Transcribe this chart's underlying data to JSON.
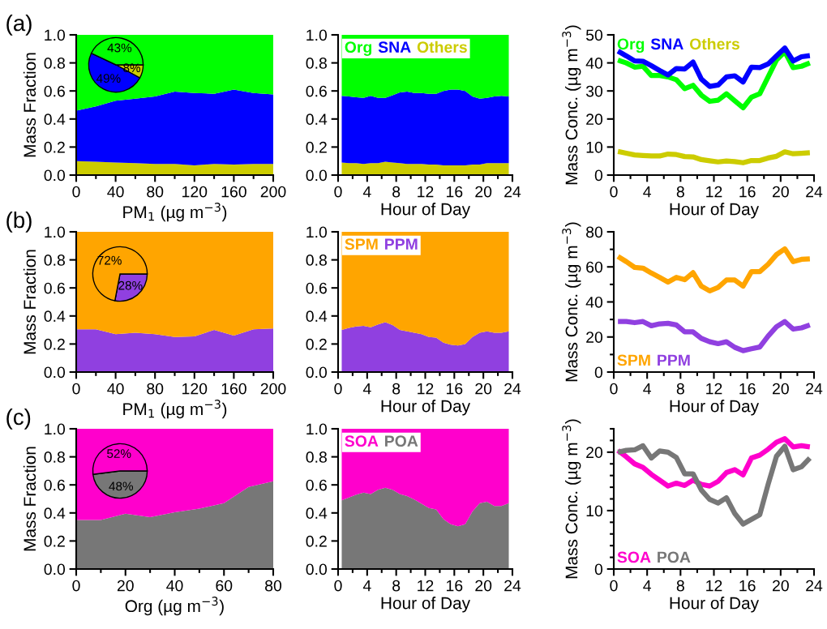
{
  "chart_data": [
    {
      "type": "area",
      "stacked": true,
      "annotations": [
        "(a)"
      ],
      "xlabel": "PM$_{1}$ (µg m$^{−3}$)",
      "ylabel": "Mass Fraction",
      "x": [
        0,
        20,
        40,
        60,
        80,
        100,
        120,
        140,
        160,
        180,
        200
      ],
      "xlim": [
        0,
        200
      ],
      "ylim": [
        0,
        1
      ],
      "xticks": [
        0,
        {
          "value": 20,
          "label": null
        },
        40,
        {
          "value": 60,
          "label": null
        },
        80,
        {
          "value": 100,
          "label": null
        },
        120,
        {
          "value": 140,
          "label": null
        },
        160,
        {
          "value": 180,
          "label": null
        },
        200
      ],
      "yticks": [
        {
          "value": 0,
          "label": "0.0"
        },
        {
          "value": 0.2,
          "label": "0.2"
        },
        {
          "value": 0.4,
          "label": "0.4"
        },
        {
          "value": 0.6,
          "label": "0.6"
        },
        {
          "value": 0.8,
          "label": "0.8"
        },
        {
          "value": 1,
          "label": "1.0"
        }
      ],
      "series": [
        {
          "color": "#cccc00",
          "values": [
            0.1,
            0.095,
            0.09,
            0.085,
            0.08,
            0.08,
            0.07,
            0.08,
            0.075,
            0.08,
            0.08
          ]
        },
        {
          "color": "#0000ff",
          "values": [
            0.36,
            0.395,
            0.44,
            0.46,
            0.48,
            0.515,
            0.515,
            0.5,
            0.535,
            0.505,
            0.495
          ]
        },
        {
          "color": "#00ff00",
          "values": [
            0.54,
            0.51,
            0.47,
            0.455,
            0.44,
            0.405,
            0.415,
            0.42,
            0.39,
            0.415,
            0.425
          ]
        }
      ]
    },
    {
      "type": "pie",
      "categories": [
        null,
        null,
        null
      ],
      "values": [
        8,
        49,
        43
      ],
      "colors": [
        "#cccc00",
        "#0000ff",
        "#00ff00"
      ],
      "value_labels": [
        "8%",
        "49%",
        "43%"
      ]
    },
    {
      "type": "area",
      "stacked": true,
      "xlabel": "Hour of Day",
      "legend": "top left",
      "x": [
        0.5,
        1.5,
        2.5,
        3.5,
        4.5,
        5.5,
        6.5,
        7.5,
        8.5,
        9.5,
        10.5,
        11.5,
        12.5,
        13.5,
        14.5,
        15.5,
        16.5,
        17.5,
        18.5,
        19.5,
        20.5,
        21.5,
        22.5,
        23.5
      ],
      "xlim": [
        0,
        24
      ],
      "ylim": [
        0,
        1
      ],
      "xticks": [
        0,
        {
          "value": 2,
          "label": null
        },
        4,
        {
          "value": 6,
          "label": null
        },
        8,
        {
          "value": 10,
          "label": null
        },
        12,
        {
          "value": 14,
          "label": null
        },
        16,
        {
          "value": 18,
          "label": null
        },
        20,
        {
          "value": 22,
          "label": null
        },
        24
      ],
      "yticks": [
        {
          "value": 0,
          "label": "0.0"
        },
        {
          "value": 0.2,
          "label": "0.2"
        },
        {
          "value": 0.4,
          "label": "0.4"
        },
        {
          "value": 0.6,
          "label": "0.6"
        },
        {
          "value": 0.8,
          "label": "0.8"
        },
        {
          "value": 1,
          "label": "1.0"
        }
      ],
      "series": [
        {
          "name": "Others",
          "color": "#cccc00",
          "values": [
            0.09,
            0.085,
            0.085,
            0.08,
            0.085,
            0.085,
            0.095,
            0.09,
            0.085,
            0.08,
            0.08,
            0.08,
            0.075,
            0.075,
            0.07,
            0.07,
            0.07,
            0.07,
            0.075,
            0.075,
            0.085,
            0.085,
            0.085,
            0.085
          ]
        },
        {
          "name": "SNA",
          "color": "#0000ff",
          "values": [
            0.475,
            0.475,
            0.47,
            0.47,
            0.48,
            0.465,
            0.455,
            0.48,
            0.505,
            0.515,
            0.505,
            0.505,
            0.505,
            0.505,
            0.53,
            0.54,
            0.54,
            0.53,
            0.485,
            0.47,
            0.465,
            0.475,
            0.48,
            0.475
          ]
        },
        {
          "name": "Org",
          "color": "#00ff00",
          "values": [
            0.435,
            0.44,
            0.445,
            0.45,
            0.435,
            0.45,
            0.45,
            0.43,
            0.41,
            0.405,
            0.415,
            0.415,
            0.42,
            0.42,
            0.4,
            0.39,
            0.39,
            0.4,
            0.44,
            0.455,
            0.45,
            0.44,
            0.435,
            0.44
          ]
        }
      ]
    },
    {
      "type": "line",
      "xlabel": "Hour of Day",
      "ylabel": "Mass Conc. (µg m$^{−3}$)",
      "legend": "top left",
      "x": [
        0.5,
        1.5,
        2.5,
        3.5,
        4.5,
        5.5,
        6.5,
        7.5,
        8.5,
        9.5,
        10.5,
        11.5,
        12.5,
        13.5,
        14.5,
        15.5,
        16.5,
        17.5,
        18.5,
        19.5,
        20.5,
        21.5,
        22.5,
        23.5
      ],
      "xlim": [
        0,
        24
      ],
      "ylim": [
        0,
        50
      ],
      "xticks": [
        0,
        {
          "value": 2,
          "label": null
        },
        4,
        {
          "value": 6,
          "label": null
        },
        8,
        {
          "value": 10,
          "label": null
        },
        12,
        {
          "value": 14,
          "label": null
        },
        16,
        {
          "value": 18,
          "label": null
        },
        20,
        {
          "value": 22,
          "label": null
        },
        24
      ],
      "yticks": [
        0,
        10,
        20,
        30,
        40,
        50
      ],
      "series": [
        {
          "name": "Org",
          "color": "#00ff00",
          "values": [
            41,
            40,
            38.5,
            38.8,
            35.5,
            35.5,
            35,
            34,
            30.8,
            32,
            28.5,
            26.3,
            26.7,
            29,
            26.5,
            24,
            27.8,
            29,
            35,
            41,
            44,
            38.3,
            38.8,
            40
          ]
        },
        {
          "name": "SNA",
          "color": "#0000ff",
          "values": [
            44.2,
            42.5,
            40.7,
            40.6,
            39,
            37.3,
            35.7,
            38,
            37.8,
            40.3,
            34.2,
            31.6,
            32.1,
            35,
            35.4,
            33.2,
            38.5,
            38.3,
            39.6,
            42.5,
            45.3,
            40.7,
            42.2,
            42.6
          ]
        },
        {
          "name": "Others",
          "color": "#cccc00",
          "values": [
            8.4,
            7.8,
            7.2,
            7.0,
            6.8,
            6.8,
            7.5,
            7.3,
            6.6,
            6.5,
            5.5,
            5.1,
            4.7,
            5.0,
            4.8,
            4.4,
            5.2,
            5.2,
            6.1,
            6.7,
            8.3,
            7.6,
            7.8,
            8.0
          ]
        }
      ]
    },
    {
      "type": "area",
      "stacked": true,
      "annotations": [
        "(b)"
      ],
      "xlabel": "PM$_{1}$ (µg m$^{−3}$)",
      "ylabel": "Mass Fraction",
      "x": [
        0,
        20,
        40,
        60,
        80,
        100,
        120,
        140,
        160,
        180,
        200
      ],
      "xlim": [
        0,
        200
      ],
      "ylim": [
        0,
        1
      ],
      "xticks": [
        0,
        {
          "value": 20,
          "label": null
        },
        40,
        {
          "value": 60,
          "label": null
        },
        80,
        {
          "value": 100,
          "label": null
        },
        120,
        {
          "value": 140,
          "label": null
        },
        160,
        {
          "value": 180,
          "label": null
        },
        200
      ],
      "yticks": [
        {
          "value": 0,
          "label": "0.0"
        },
        {
          "value": 0.2,
          "label": "0.2"
        },
        {
          "value": 0.4,
          "label": "0.4"
        },
        {
          "value": 0.6,
          "label": "0.6"
        },
        {
          "value": 0.8,
          "label": "0.8"
        },
        {
          "value": 1,
          "label": "1.0"
        }
      ],
      "series": [
        {
          "color": "#9040e0",
          "values": [
            0.305,
            0.305,
            0.27,
            0.28,
            0.27,
            0.25,
            0.255,
            0.3,
            0.26,
            0.305,
            0.31
          ]
        },
        {
          "color": "#ffa500",
          "values": [
            0.695,
            0.695,
            0.73,
            0.72,
            0.73,
            0.75,
            0.745,
            0.7,
            0.74,
            0.695,
            0.69
          ]
        }
      ]
    },
    {
      "type": "pie",
      "categories": [
        null,
        null
      ],
      "values": [
        28,
        72
      ],
      "colors": [
        "#9040e0",
        "#ffa500"
      ],
      "value_labels": [
        "28%",
        "72%"
      ]
    },
    {
      "type": "area",
      "stacked": true,
      "xlabel": "Hour of Day",
      "legend": "top left",
      "x": [
        0.5,
        1.5,
        2.5,
        3.5,
        4.5,
        5.5,
        6.5,
        7.5,
        8.5,
        9.5,
        10.5,
        11.5,
        12.5,
        13.5,
        14.5,
        15.5,
        16.5,
        17.5,
        18.5,
        19.5,
        20.5,
        21.5,
        22.5,
        23.5
      ],
      "xlim": [
        0,
        24
      ],
      "ylim": [
        0,
        1
      ],
      "xticks": [
        0,
        {
          "value": 2,
          "label": null
        },
        4,
        {
          "value": 6,
          "label": null
        },
        8,
        {
          "value": 10,
          "label": null
        },
        12,
        {
          "value": 14,
          "label": null
        },
        16,
        {
          "value": 18,
          "label": null
        },
        20,
        {
          "value": 22,
          "label": null
        },
        24
      ],
      "yticks": [
        {
          "value": 0,
          "label": "0.0"
        },
        {
          "value": 0.2,
          "label": "0.2"
        },
        {
          "value": 0.4,
          "label": "0.4"
        },
        {
          "value": 0.6,
          "label": "0.6"
        },
        {
          "value": 0.8,
          "label": "0.8"
        },
        {
          "value": 1,
          "label": "1.0"
        }
      ],
      "series": [
        {
          "name": "PPM",
          "color": "#9040e0",
          "values": [
            0.3,
            0.315,
            0.325,
            0.33,
            0.32,
            0.34,
            0.355,
            0.335,
            0.3,
            0.29,
            0.28,
            0.27,
            0.25,
            0.245,
            0.21,
            0.195,
            0.19,
            0.2,
            0.25,
            0.28,
            0.29,
            0.28,
            0.28,
            0.29
          ]
        },
        {
          "name": "SPM",
          "color": "#ffa500",
          "values": [
            0.7,
            0.685,
            0.675,
            0.67,
            0.68,
            0.66,
            0.645,
            0.665,
            0.7,
            0.71,
            0.72,
            0.73,
            0.75,
            0.755,
            0.79,
            0.805,
            0.81,
            0.8,
            0.75,
            0.72,
            0.71,
            0.72,
            0.72,
            0.71
          ]
        }
      ]
    },
    {
      "type": "line",
      "xlabel": "Hour of Day",
      "ylabel": "Mass Conc. (µg m$^{−3}$)",
      "legend": "bottom left",
      "x": [
        0.5,
        1.5,
        2.5,
        3.5,
        4.5,
        5.5,
        6.5,
        7.5,
        8.5,
        9.5,
        10.5,
        11.5,
        12.5,
        13.5,
        14.5,
        15.5,
        16.5,
        17.5,
        18.5,
        19.5,
        20.5,
        21.5,
        22.5,
        23.5
      ],
      "xlim": [
        0,
        24
      ],
      "ylim": [
        0,
        80
      ],
      "xticks": [
        0,
        {
          "value": 2,
          "label": null
        },
        4,
        {
          "value": 6,
          "label": null
        },
        8,
        {
          "value": 10,
          "label": null
        },
        12,
        {
          "value": 14,
          "label": null
        },
        16,
        {
          "value": 18,
          "label": null
        },
        20,
        {
          "value": 22,
          "label": null
        },
        24
      ],
      "yticks": [
        0,
        {
          "value": 10,
          "label": null
        },
        20,
        {
          "value": 30,
          "label": null
        },
        40,
        {
          "value": 50,
          "label": null
        },
        60,
        {
          "value": 70,
          "label": null
        },
        80
      ],
      "series": [
        {
          "name": "SPM",
          "color": "#ffa500",
          "values": [
            66,
            63,
            59.7,
            59.3,
            56.5,
            54,
            51.3,
            54,
            52.7,
            56.7,
            49,
            46.3,
            48.3,
            52.5,
            52.5,
            49,
            57.3,
            57.3,
            61.5,
            67,
            70.3,
            63,
            64.3,
            64.6
          ]
        },
        {
          "name": "PPM",
          "color": "#9040e0",
          "values": [
            28.8,
            28.8,
            28.2,
            28.8,
            26.4,
            27.5,
            27.8,
            26.9,
            22.9,
            22.9,
            19.2,
            17.3,
            16.2,
            17.3,
            14.1,
            12.2,
            13.3,
            14.3,
            20.5,
            25.8,
            28.8,
            24.5,
            25.2,
            26.9
          ]
        }
      ]
    },
    {
      "type": "area",
      "stacked": true,
      "annotations": [
        "(c)"
      ],
      "xlabel": "Org (µg m$^{−3}$)",
      "ylabel": "Mass Fraction",
      "x": [
        0,
        10,
        20,
        30,
        40,
        50,
        60,
        70,
        80
      ],
      "xlim": [
        0,
        80
      ],
      "ylim": [
        0,
        1
      ],
      "xticks": [
        0,
        {
          "value": 10,
          "label": null
        },
        20,
        {
          "value": 30,
          "label": null
        },
        40,
        {
          "value": 50,
          "label": null
        },
        60,
        {
          "value": 70,
          "label": null
        },
        80
      ],
      "yticks": [
        {
          "value": 0,
          "label": "0.0"
        },
        {
          "value": 0.2,
          "label": "0.2"
        },
        {
          "value": 0.4,
          "label": "0.4"
        },
        {
          "value": 0.6,
          "label": "0.6"
        },
        {
          "value": 0.8,
          "label": "0.8"
        },
        {
          "value": 1,
          "label": "1.0"
        }
      ],
      "series": [
        {
          "color": "#777777",
          "values": [
            0.35,
            0.35,
            0.395,
            0.37,
            0.405,
            0.43,
            0.47,
            0.585,
            0.625
          ]
        },
        {
          "color": "#ff00cc",
          "values": [
            0.65,
            0.65,
            0.605,
            0.63,
            0.595,
            0.57,
            0.53,
            0.415,
            0.375
          ]
        }
      ]
    },
    {
      "type": "pie",
      "categories": [
        null,
        null
      ],
      "values": [
        48,
        52
      ],
      "colors": [
        "#777777",
        "#ff00cc"
      ],
      "value_labels": [
        "48%",
        "52%"
      ]
    },
    {
      "type": "area",
      "stacked": true,
      "xlabel": "Hour of Day",
      "legend": "top left",
      "x": [
        0.5,
        1.5,
        2.5,
        3.5,
        4.5,
        5.5,
        6.5,
        7.5,
        8.5,
        9.5,
        10.5,
        11.5,
        12.5,
        13.5,
        14.5,
        15.5,
        16.5,
        17.5,
        18.5,
        19.5,
        20.5,
        21.5,
        22.5,
        23.5
      ],
      "xlim": [
        0,
        24
      ],
      "ylim": [
        0,
        1
      ],
      "xticks": [
        0,
        {
          "value": 2,
          "label": null
        },
        4,
        {
          "value": 6,
          "label": null
        },
        8,
        {
          "value": 10,
          "label": null
        },
        12,
        {
          "value": 14,
          "label": null
        },
        16,
        {
          "value": 18,
          "label": null
        },
        20,
        {
          "value": 22,
          "label": null
        },
        24
      ],
      "yticks": [
        {
          "value": 0,
          "label": "0.0"
        },
        {
          "value": 0.2,
          "label": "0.2"
        },
        {
          "value": 0.4,
          "label": "0.4"
        },
        {
          "value": 0.6,
          "label": "0.6"
        },
        {
          "value": 0.8,
          "label": "0.8"
        },
        {
          "value": 1,
          "label": "1.0"
        }
      ],
      "series": [
        {
          "name": "POA",
          "color": "#777777",
          "values": [
            0.49,
            0.51,
            0.53,
            0.545,
            0.535,
            0.565,
            0.58,
            0.565,
            0.535,
            0.52,
            0.495,
            0.465,
            0.435,
            0.425,
            0.355,
            0.32,
            0.305,
            0.32,
            0.41,
            0.47,
            0.48,
            0.45,
            0.45,
            0.47
          ]
        },
        {
          "name": "SOA",
          "color": "#ff00cc",
          "values": [
            0.51,
            0.49,
            0.47,
            0.455,
            0.465,
            0.435,
            0.42,
            0.435,
            0.465,
            0.48,
            0.505,
            0.535,
            0.565,
            0.575,
            0.645,
            0.68,
            0.695,
            0.68,
            0.59,
            0.53,
            0.52,
            0.55,
            0.55,
            0.53
          ]
        }
      ]
    },
    {
      "type": "line",
      "xlabel": "Hour of Day",
      "ylabel": "Mass Conc. (µg m$^{−3}$)",
      "legend": "bottom left",
      "x": [
        0.5,
        1.5,
        2.5,
        3.5,
        4.5,
        5.5,
        6.5,
        7.5,
        8.5,
        9.5,
        10.5,
        11.5,
        12.5,
        13.5,
        14.5,
        15.5,
        16.5,
        17.5,
        18.5,
        19.5,
        20.5,
        21.5,
        22.5,
        23.5
      ],
      "xlim": [
        0,
        24
      ],
      "ylim": [
        0,
        24
      ],
      "xticks": [
        0,
        {
          "value": 2,
          "label": null
        },
        4,
        {
          "value": 6,
          "label": null
        },
        8,
        {
          "value": 10,
          "label": null
        },
        12,
        {
          "value": 14,
          "label": null
        },
        16,
        {
          "value": 18,
          "label": null
        },
        20,
        {
          "value": 22,
          "label": null
        },
        24
      ],
      "yticks": [
        0,
        {
          "value": 2,
          "label": null
        },
        {
          "value": 4,
          "label": null
        },
        {
          "value": 6,
          "label": null
        },
        {
          "value": 8,
          "label": null
        },
        10,
        {
          "value": 12,
          "label": null
        },
        {
          "value": 14,
          "label": null
        },
        {
          "value": 16,
          "label": null
        },
        {
          "value": 18,
          "label": null
        },
        20,
        {
          "value": 22,
          "label": null
        },
        {
          "value": 24,
          "label": null
        }
      ],
      "series": [
        {
          "name": "SOA",
          "color": "#ff00cc",
          "values": [
            20.3,
            19.2,
            18,
            17.4,
            16.2,
            15.2,
            14.2,
            14.7,
            14.3,
            15.2,
            14.5,
            14.2,
            15,
            16.5,
            17,
            16.1,
            19,
            19.5,
            20.5,
            21.7,
            22.3,
            20.9,
            21.1,
            20.9
          ]
        },
        {
          "name": "POA",
          "color": "#777777",
          "values": [
            20,
            20.3,
            20.4,
            21.1,
            19,
            20.2,
            20,
            19.1,
            16.3,
            16.3,
            13.5,
            11.9,
            11.3,
            12.2,
            9.5,
            7.7,
            8.5,
            9.3,
            14.5,
            19.3,
            21,
            17,
            17.5,
            19
          ]
        }
      ]
    }
  ]
}
